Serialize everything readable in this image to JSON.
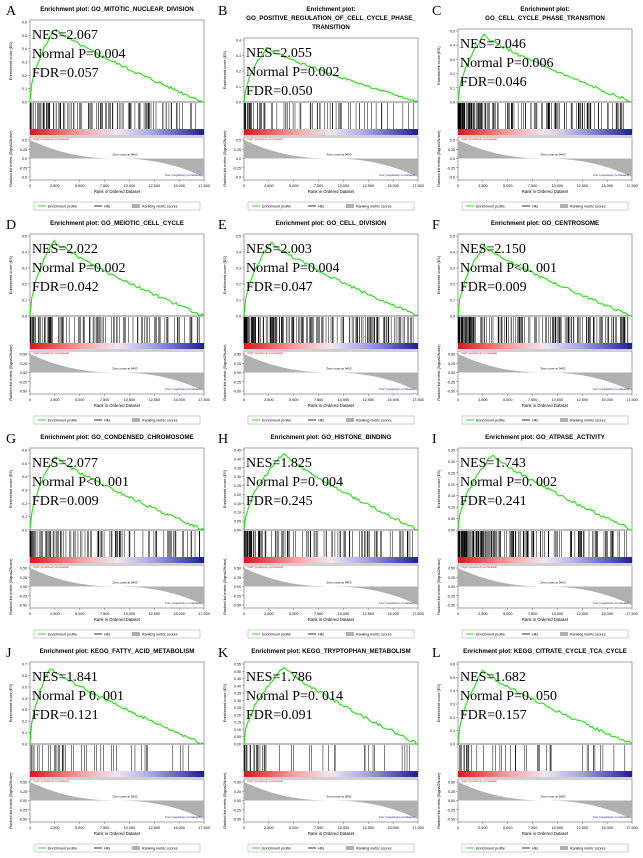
{
  "common": {
    "ylabel_top": "Enrichment score (ES)",
    "ylabel_bottom": "Ranked list metric (Signal2Noise)",
    "xlabel": "Rank in Ordered Dataset",
    "pos_label": "'high' (positively correlated)",
    "neg_label": "'low' (negatively correlated)",
    "legend": [
      "Enrichment profile",
      "Hits",
      "Ranking metric scores"
    ],
    "colors": {
      "curve": "#33dd22",
      "hits": "#000000",
      "metric": "#b0b0b0",
      "red": "#e41a1c",
      "blue": "#2424a0"
    }
  },
  "chart_data": [
    {
      "letter": "A",
      "type": "line",
      "title": "Enrichment plot: GO_MITOTIC_NUCLEAR_DIVISION",
      "stats": [
        "NES=2.067",
        "Normal P=0.004",
        "FDR=0.057"
      ],
      "ylim": [
        0,
        0.6
      ],
      "yticks": [
        "0.6",
        "0.5",
        "0.4",
        "0.3",
        "0.2",
        "0.1",
        "0.0"
      ],
      "xticks": [
        "0",
        "2,500",
        "5,000",
        "7,500",
        "10,000",
        "12,500",
        "15,000",
        "17,500"
      ],
      "mticks": [
        "0.5",
        "0.25",
        "0.0",
        "-0.25",
        "-0.5"
      ],
      "zero_cross": "Zero cross at 9403",
      "peak_x": 2500,
      "peak_es": 0.55,
      "hit_density": "medium"
    },
    {
      "letter": "B",
      "type": "line",
      "title": "Enrichment plot:",
      "title2": "GO_POSITIVE_REGULATION_OF_CELL_CYCLE_PHASE_",
      "title3": "TRANSITION",
      "stats": [
        "NES=2.055",
        "Normal P=0.002",
        "FDR=0.050"
      ],
      "ylim": [
        0,
        0.4
      ],
      "yticks": [
        "0.4",
        "0.3",
        "0.2",
        "0.1",
        "0.0"
      ],
      "xticks": [
        "0",
        "2,500",
        "5,000",
        "7,500",
        "10,000",
        "12,500",
        "15,000",
        "17,500"
      ],
      "mticks": [
        "0.5",
        "0.25",
        "0.0",
        "-0.25",
        "-0.5"
      ],
      "zero_cross": "Zero cross at 9403",
      "peak_x": 2300,
      "peak_es": 0.35,
      "hit_density": "low"
    },
    {
      "letter": "C",
      "type": "line",
      "title": "Enrichment plot:",
      "title2": "GO_CELL_CYCLE_PHASE_TRANSITION",
      "stats": [
        "NES=2.046",
        "Normal P=0.006",
        "FDR=0.046"
      ],
      "ylim": [
        0,
        0.5
      ],
      "yticks": [
        "0.5",
        "0.4",
        "0.3",
        "0.2",
        "0.1",
        "0.0"
      ],
      "xticks": [
        "0",
        "2,500",
        "5,000",
        "7,500",
        "10,000",
        "12,500",
        "15,000",
        "17,500"
      ],
      "mticks": [
        "0.5",
        "0.25",
        "0.0",
        "-0.25",
        "-0.5"
      ],
      "zero_cross": "Zero cross at 9403",
      "peak_x": 2600,
      "peak_es": 0.47,
      "hit_density": "high"
    },
    {
      "letter": "D",
      "type": "line",
      "title": "Enrichment plot: GO_MEIOTIC_CELL_CYCLE",
      "stats": [
        "NES=2.022",
        "Normal P=0.002",
        "FDR=0.042"
      ],
      "ylim": [
        0,
        0.5
      ],
      "yticks": [
        "0.5",
        "0.4",
        "0.3",
        "0.2",
        "0.1",
        "0.0"
      ],
      "xticks": [
        "0",
        "2,500",
        "5,000",
        "7,500",
        "10,000",
        "12,500",
        "15,000",
        "17,500"
      ],
      "mticks": [
        "0.50",
        "0.25",
        "0.00",
        "-0.25",
        "-0.50"
      ],
      "zero_cross": "Zero cross at 9403",
      "peak_x": 2400,
      "peak_es": 0.47,
      "hit_density": "medium"
    },
    {
      "letter": "E",
      "type": "line",
      "title": "Enrichment plot: GO_CELL_DIVISION",
      "stats": [
        "NES=2.003",
        "Normal P=0.004",
        "FDR=0.047"
      ],
      "ylim": [
        0,
        0.5
      ],
      "yticks": [
        "0.5",
        "0.4",
        "0.3",
        "0.2",
        "0.1",
        "0.0"
      ],
      "xticks": [
        "0",
        "2,500",
        "5,000",
        "7,500",
        "10,000",
        "12,500",
        "15,000",
        "17,500"
      ],
      "mticks": [
        "0.50",
        "0.25",
        "0.00",
        "-0.25",
        "-0.50"
      ],
      "zero_cross": "Zero cross at 9403",
      "peak_x": 2700,
      "peak_es": 0.46,
      "hit_density": "high"
    },
    {
      "letter": "F",
      "type": "line",
      "title": "Enrichment plot: GO_CENTROSOME",
      "stats": [
        "NES=2.150",
        "Normal P<0. 001",
        "FDR=0.009"
      ],
      "ylim": [
        0,
        0.5
      ],
      "yticks": [
        "0.5",
        "0.4",
        "0.3",
        "0.2",
        "0.1",
        "0.0"
      ],
      "xticks": [
        "0",
        "2,500",
        "5,000",
        "7,500",
        "10,000",
        "12,500",
        "15,000",
        "17,500"
      ],
      "mticks": [
        "0.50",
        "0.25",
        "0.00",
        "-0.25",
        "-0.50"
      ],
      "zero_cross": "Zero cross at 9403",
      "peak_x": 2600,
      "peak_es": 0.44,
      "hit_density": "high"
    },
    {
      "letter": "G",
      "type": "line",
      "title": "Enrichment plot: GO_CONDENSED_CHROMOSOME",
      "stats": [
        "NES=2.077",
        "Normal P<0. 001",
        "FDR=0.009"
      ],
      "ylim": [
        0,
        0.6
      ],
      "yticks": [
        "0.6",
        "0.5",
        "0.4",
        "0.3",
        "0.2",
        "0.1",
        "0.0"
      ],
      "xticks": [
        "0",
        "2,500",
        "5,000",
        "7,500",
        "10,000",
        "12,500",
        "15,000",
        "17,500"
      ],
      "mticks": [
        "0.50",
        "0.25",
        "0.00",
        "-0.25",
        "-0.50"
      ],
      "zero_cross": "Zero cross at 9403",
      "peak_x": 2500,
      "peak_es": 0.55,
      "hit_density": "medium"
    },
    {
      "letter": "H",
      "type": "line",
      "title": "Enrichment plot: GO_HISTONE_BINDING",
      "stats": [
        "NES=1.825",
        "Normal P=0. 004",
        "FDR=0.245"
      ],
      "ylim": [
        0,
        0.45
      ],
      "yticks": [
        "0.45",
        "0.40",
        "0.35",
        "0.30",
        "0.25",
        "0.20",
        "0.15",
        "0.10",
        "0.05",
        "0.00"
      ],
      "xticks": [
        "0",
        "2,500",
        "5,000",
        "7,500",
        "10,000",
        "12,500",
        "15,000",
        "17,500"
      ],
      "mticks": [
        "0.50",
        "0.25",
        "0.00",
        "-0.25",
        "-0.50"
      ],
      "zero_cross": "Zero cross at 9403",
      "peak_x": 4000,
      "peak_es": 0.43,
      "hit_density": "medium"
    },
    {
      "letter": "I",
      "type": "line",
      "title": "Enrichment plot: GO_ATPASE_ACTIVITY",
      "stats": [
        "NES=1.743",
        "Normal P=0. 002",
        "FDR=0.241"
      ],
      "ylim": [
        0,
        0.35
      ],
      "yticks": [
        "0.35",
        "0.30",
        "0.25",
        "0.20",
        "0.15",
        "0.10",
        "0.05",
        "0.00"
      ],
      "xticks": [
        "0",
        "2,500",
        "5,000",
        "7,500",
        "10,000",
        "12,500",
        "15,000",
        "17,500"
      ],
      "mticks": [
        "0.50",
        "0.25",
        "0.00",
        "-0.25",
        "-0.50"
      ],
      "zero_cross": "Zero cross at 9403",
      "peak_x": 3500,
      "peak_es": 0.33,
      "hit_density": "high"
    },
    {
      "letter": "J",
      "type": "line",
      "title": "Enrichment plot: KEGG_FATTY_ACID_METABOLISM",
      "stats": [
        "NES=1.841",
        "Normal P  0. 001",
        "FDR=0.121"
      ],
      "ylim": [
        0,
        0.7
      ],
      "yticks": [
        "0.7",
        "0.6",
        "0.5",
        "0.4",
        "0.3",
        "0.2",
        "0.1",
        "0.0"
      ],
      "xticks": [
        "0",
        "2,500",
        "5,000",
        "7,500",
        "10,000",
        "12,500",
        "15,000",
        "17,500"
      ],
      "mticks": [
        "0.50",
        "0.25",
        "0.00",
        "-0.25",
        "-0.50"
      ],
      "zero_cross": "Zero cross at 8282",
      "peak_x": 2000,
      "peak_es": 0.67,
      "hit_density": "sparse"
    },
    {
      "letter": "K",
      "type": "line",
      "title": "Enrichment plot: KEGG_TRYPTOPHAN_METABOLISM",
      "stats": [
        "NES=1.786",
        "Normal P=0. 014",
        "FDR=0.091"
      ],
      "ylim": [
        0,
        0.55
      ],
      "yticks": [
        "0.55",
        "0.50",
        "0.45",
        "0.40",
        "0.35",
        "0.30",
        "0.25",
        "0.20",
        "0.15",
        "0.10",
        "0.05",
        "0.00"
      ],
      "xticks": [
        "0",
        "2,500",
        "5,000",
        "7,500",
        "10,000",
        "12,500",
        "15,000",
        "17,500"
      ],
      "mticks": [
        "0.50",
        "0.25",
        "0.00",
        "-0.25",
        "-0.50"
      ],
      "zero_cross": "Zero cross at 8282",
      "peak_x": 4000,
      "peak_es": 0.53,
      "hit_density": "sparse"
    },
    {
      "letter": "L",
      "type": "line",
      "title": "Enrichment plot: KEGG_CITRATE_CYCLE_TCA_CYCLE",
      "stats": [
        "NES=1.682",
        "Normal P=0. 050",
        "FDR=0.157"
      ],
      "ylim": [
        0,
        0.6
      ],
      "yticks": [
        "0.6",
        "0.5",
        "0.4",
        "0.3",
        "0.2",
        "0.1",
        "0.0"
      ],
      "xticks": [
        "0",
        "2,500",
        "5,000",
        "7,500",
        "10,000",
        "12,500",
        "15,000",
        "17,500"
      ],
      "mticks": [
        "0.50",
        "0.25",
        "0.00",
        "-0.25",
        "-0.50"
      ],
      "zero_cross": "Zero cross at 8282",
      "peak_x": 2500,
      "peak_es": 0.55,
      "hit_density": "sparse"
    }
  ]
}
